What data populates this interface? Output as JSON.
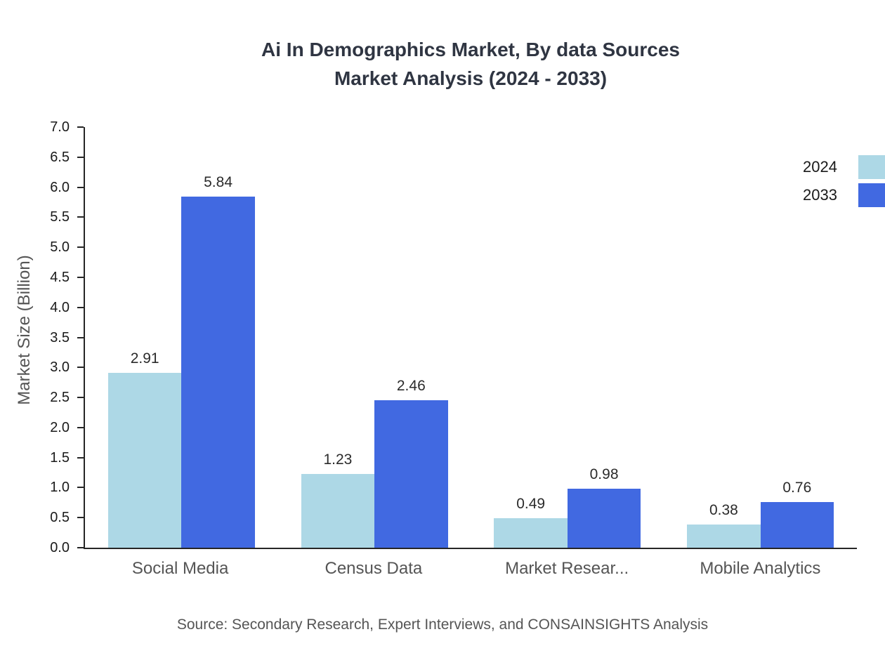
{
  "title": {
    "line1": "Ai In Demographics Market, By data Sources",
    "line2": "Market Analysis (2024 - 2033)"
  },
  "y_axis_title": "Market Size (Billion)",
  "source": "Source: Secondary Research, Expert Interviews, and CONSAINSIGHTS Analysis",
  "legend": [
    {
      "label": "2024",
      "color": "#add8e6"
    },
    {
      "label": "2033",
      "color": "#4169e1"
    }
  ],
  "chart_data": {
    "type": "bar",
    "title": "Ai In Demographics Market, By data Sources Market Analysis (2024 - 2033)",
    "categories": [
      "Social Media",
      "Census Data",
      "Market Resear...",
      "Mobile Analytics"
    ],
    "series": [
      {
        "name": "2024",
        "color": "#add8e6",
        "values": [
          2.91,
          1.23,
          0.49,
          0.38
        ]
      },
      {
        "name": "2033",
        "color": "#4169e1",
        "values": [
          5.84,
          2.46,
          0.98,
          0.76
        ]
      }
    ],
    "xlabel": "",
    "ylabel": "Market Size (Billion)",
    "ylim": [
      0,
      7
    ],
    "ytick_step": 0.5,
    "grid": false,
    "legend_position": "top-right",
    "value_labels": true
  }
}
